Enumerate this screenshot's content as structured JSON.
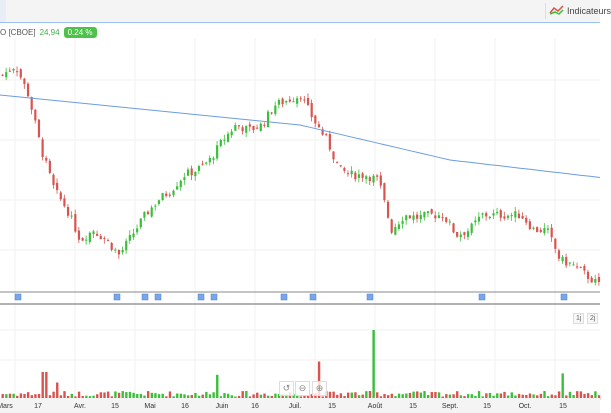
{
  "toolbar": {
    "indicators_label": "Indicateurs",
    "indicators_icon": "indicators-chart-icon"
  },
  "legend": {
    "symbol": "O [CBOE]",
    "last": "24,94",
    "change": "0.24 %"
  },
  "colors": {
    "up": "#3bbf3b",
    "down": "#d9534f",
    "ma": "#6c9ce0",
    "badge": "#4cc24a"
  },
  "ranges": [
    "1j",
    "2j"
  ],
  "x_axis": [
    "Mars",
    "17",
    "Avr.",
    "15",
    "Mai",
    "16",
    "Juin",
    "16",
    "Juil.",
    "15",
    "Août",
    "15",
    "Sept.",
    "15",
    "Oct.",
    "15"
  ],
  "zoom_controls": [
    {
      "name": "reset-zoom",
      "icon": "↺"
    },
    {
      "name": "zoom-out",
      "icon": "⊖"
    },
    {
      "name": "zoom-in",
      "icon": "⊕"
    }
  ],
  "chart_data": {
    "type": "candlestick",
    "price_waypoints": [
      29.0,
      29.4,
      28.2,
      26.0,
      24.4,
      23.6,
      22.4,
      22.8,
      22.4,
      21.8,
      22.6,
      23.4,
      24.0,
      24.4,
      25.0,
      25.2,
      25.6,
      26.4,
      27.0,
      26.8,
      27.0,
      27.8,
      28.0,
      28.2,
      27.2,
      26.4,
      25.2,
      25.0,
      25.0,
      24.8,
      22.8,
      23.4,
      23.3,
      23.4,
      23.4,
      22.6,
      22.8,
      23.4,
      23.4,
      23.4,
      23.4,
      22.8,
      22.8,
      21.6,
      21.4,
      21.0,
      20.6
    ],
    "moving_average_waypoints": [
      28.2,
      27.6,
      27.0,
      25.6,
      24.9
    ],
    "event_flags": 11,
    "volume_spikes": [
      {
        "at": 0.07,
        "v": 0.4
      },
      {
        "at": 0.09,
        "v": 0.25
      },
      {
        "at": 0.36,
        "v": 0.36
      },
      {
        "at": 0.53,
        "v": 0.55
      },
      {
        "at": 0.62,
        "v": 1.0
      },
      {
        "at": 0.94,
        "v": 0.38
      }
    ]
  }
}
